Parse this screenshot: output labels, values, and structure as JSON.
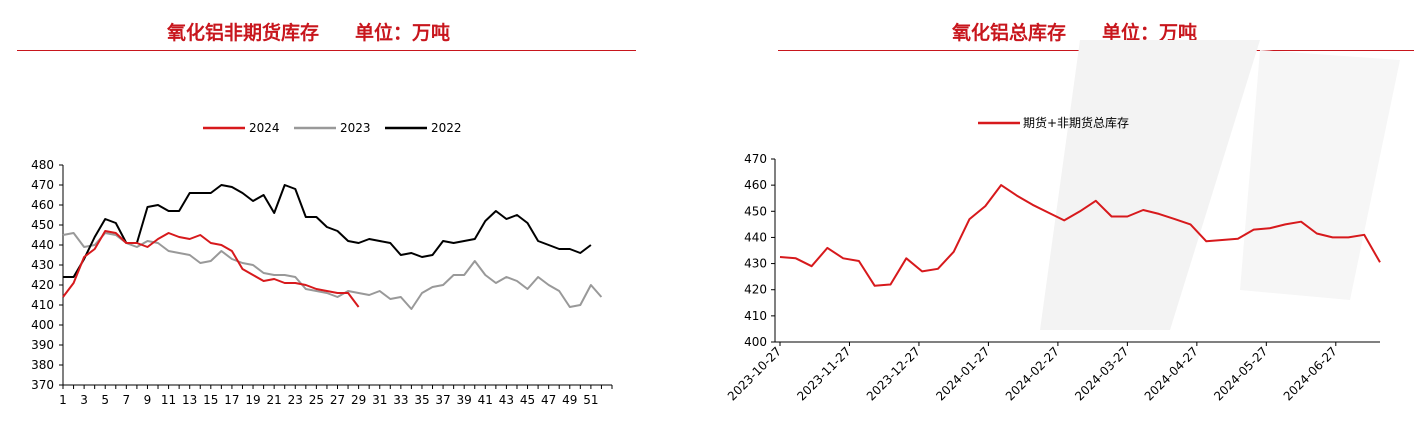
{
  "charts": {
    "left": {
      "title": "氧化铝非期货库存",
      "unit": "单位：万吨",
      "chart_data": {
        "type": "line",
        "title": "氧化铝非期货库存",
        "subtitle": "单位：万吨",
        "xlabel": "",
        "ylabel": "",
        "x_ticks": [
          "1",
          "3",
          "5",
          "7",
          "9",
          "11",
          "13",
          "15",
          "17",
          "19",
          "21",
          "23",
          "25",
          "27",
          "29",
          "31",
          "33",
          "35",
          "37",
          "39",
          "41",
          "43",
          "45",
          "47",
          "49",
          "51"
        ],
        "xlim": [
          1,
          53
        ],
        "ylim": [
          370,
          480
        ],
        "y_ticks": [
          370,
          380,
          390,
          400,
          410,
          420,
          430,
          440,
          450,
          460,
          470,
          480
        ],
        "legend_position": "top-center",
        "series": [
          {
            "name": "2024",
            "color": "#d7191c",
            "x": [
              1,
              2,
              3,
              4,
              5,
              6,
              7,
              8,
              9,
              10,
              11,
              12,
              13,
              14,
              15,
              16,
              17,
              18,
              19,
              20,
              21,
              22,
              23,
              24,
              25,
              26,
              27,
              28,
              29
            ],
            "values": [
              414,
              421,
              434,
              438,
              447,
              446,
              441,
              441,
              439,
              443,
              446,
              444,
              443,
              445,
              441,
              440,
              437,
              428,
              425,
              422,
              423,
              421,
              421,
              420,
              418,
              417,
              416,
              416,
              409
            ]
          },
          {
            "name": "2023",
            "color": "#999999",
            "x": [
              1,
              2,
              3,
              4,
              5,
              6,
              7,
              8,
              9,
              10,
              11,
              12,
              13,
              14,
              15,
              16,
              17,
              18,
              19,
              20,
              21,
              22,
              23,
              24,
              25,
              26,
              27,
              28,
              29,
              30,
              31,
              32,
              33,
              34,
              35,
              36,
              37,
              38,
              39,
              40,
              41,
              42,
              43,
              44,
              45,
              46,
              47,
              48,
              49,
              50,
              51,
              52
            ],
            "values": [
              445,
              446,
              439,
              440,
              446,
              445,
              441,
              439,
              442,
              441,
              437,
              436,
              435,
              431,
              432,
              437,
              433,
              431,
              430,
              426,
              425,
              425,
              424,
              418,
              417,
              416,
              414,
              417,
              416,
              415,
              417,
              413,
              414,
              408,
              416,
              419,
              420,
              425,
              425,
              432,
              425,
              421,
              424,
              422,
              418,
              424,
              420,
              417,
              409,
              410,
              420,
              414
            ]
          },
          {
            "name": "2022",
            "color": "#000000",
            "x": [
              1,
              2,
              3,
              4,
              5,
              6,
              7,
              8,
              9,
              10,
              11,
              12,
              13,
              14,
              15,
              16,
              17,
              18,
              19,
              20,
              21,
              22,
              23,
              24,
              25,
              26,
              27,
              28,
              29,
              30,
              31,
              32,
              33,
              34,
              35,
              36,
              37,
              38,
              39,
              40,
              41,
              42,
              43,
              44,
              45,
              46,
              47,
              48,
              49,
              50,
              51
            ],
            "values": [
              424,
              424,
              433,
              444,
              453,
              451,
              441,
              441,
              459,
              460,
              457,
              457,
              466,
              466,
              466,
              470,
              469,
              466,
              462,
              465,
              456,
              470,
              468,
              454,
              454,
              449,
              447,
              442,
              441,
              443,
              442,
              441,
              435,
              436,
              434,
              435,
              442,
              441,
              442,
              443,
              452,
              457,
              453,
              455,
              451,
              442,
              440,
              438,
              438,
              436,
              440
            ]
          }
        ]
      }
    },
    "right": {
      "title": "氧化铝总库存",
      "unit": "单位：万吨",
      "chart_data": {
        "type": "line",
        "title": "氧化铝总库存",
        "subtitle": "单位：万吨",
        "xlabel": "",
        "ylabel": "",
        "x_ticks": [
          "2023-10-27",
          "2023-11-27",
          "2023-12-27",
          "2024-01-27",
          "2024-02-27",
          "2024-03-27",
          "2024-04-27",
          "2024-05-27",
          "2024-06-27"
        ],
        "ylim": [
          400,
          470
        ],
        "y_ticks": [
          400,
          410,
          420,
          430,
          440,
          450,
          460,
          470
        ],
        "legend_position": "top-center",
        "series": [
          {
            "name": "期货+非期货总库存",
            "color": "#d7191c",
            "values": [
              432.5,
              432,
              429,
              436,
              432,
              431,
              421.5,
              422,
              432,
              427,
              428,
              434.5,
              447,
              452,
              460,
              456,
              452.5,
              449.5,
              446.5,
              450,
              454,
              448,
              448,
              450.5,
              449,
              447,
              445,
              438.5,
              439,
              439.5,
              443,
              443.5,
              445,
              446,
              441.5,
              440,
              440,
              441,
              430.5
            ]
          }
        ]
      }
    }
  }
}
